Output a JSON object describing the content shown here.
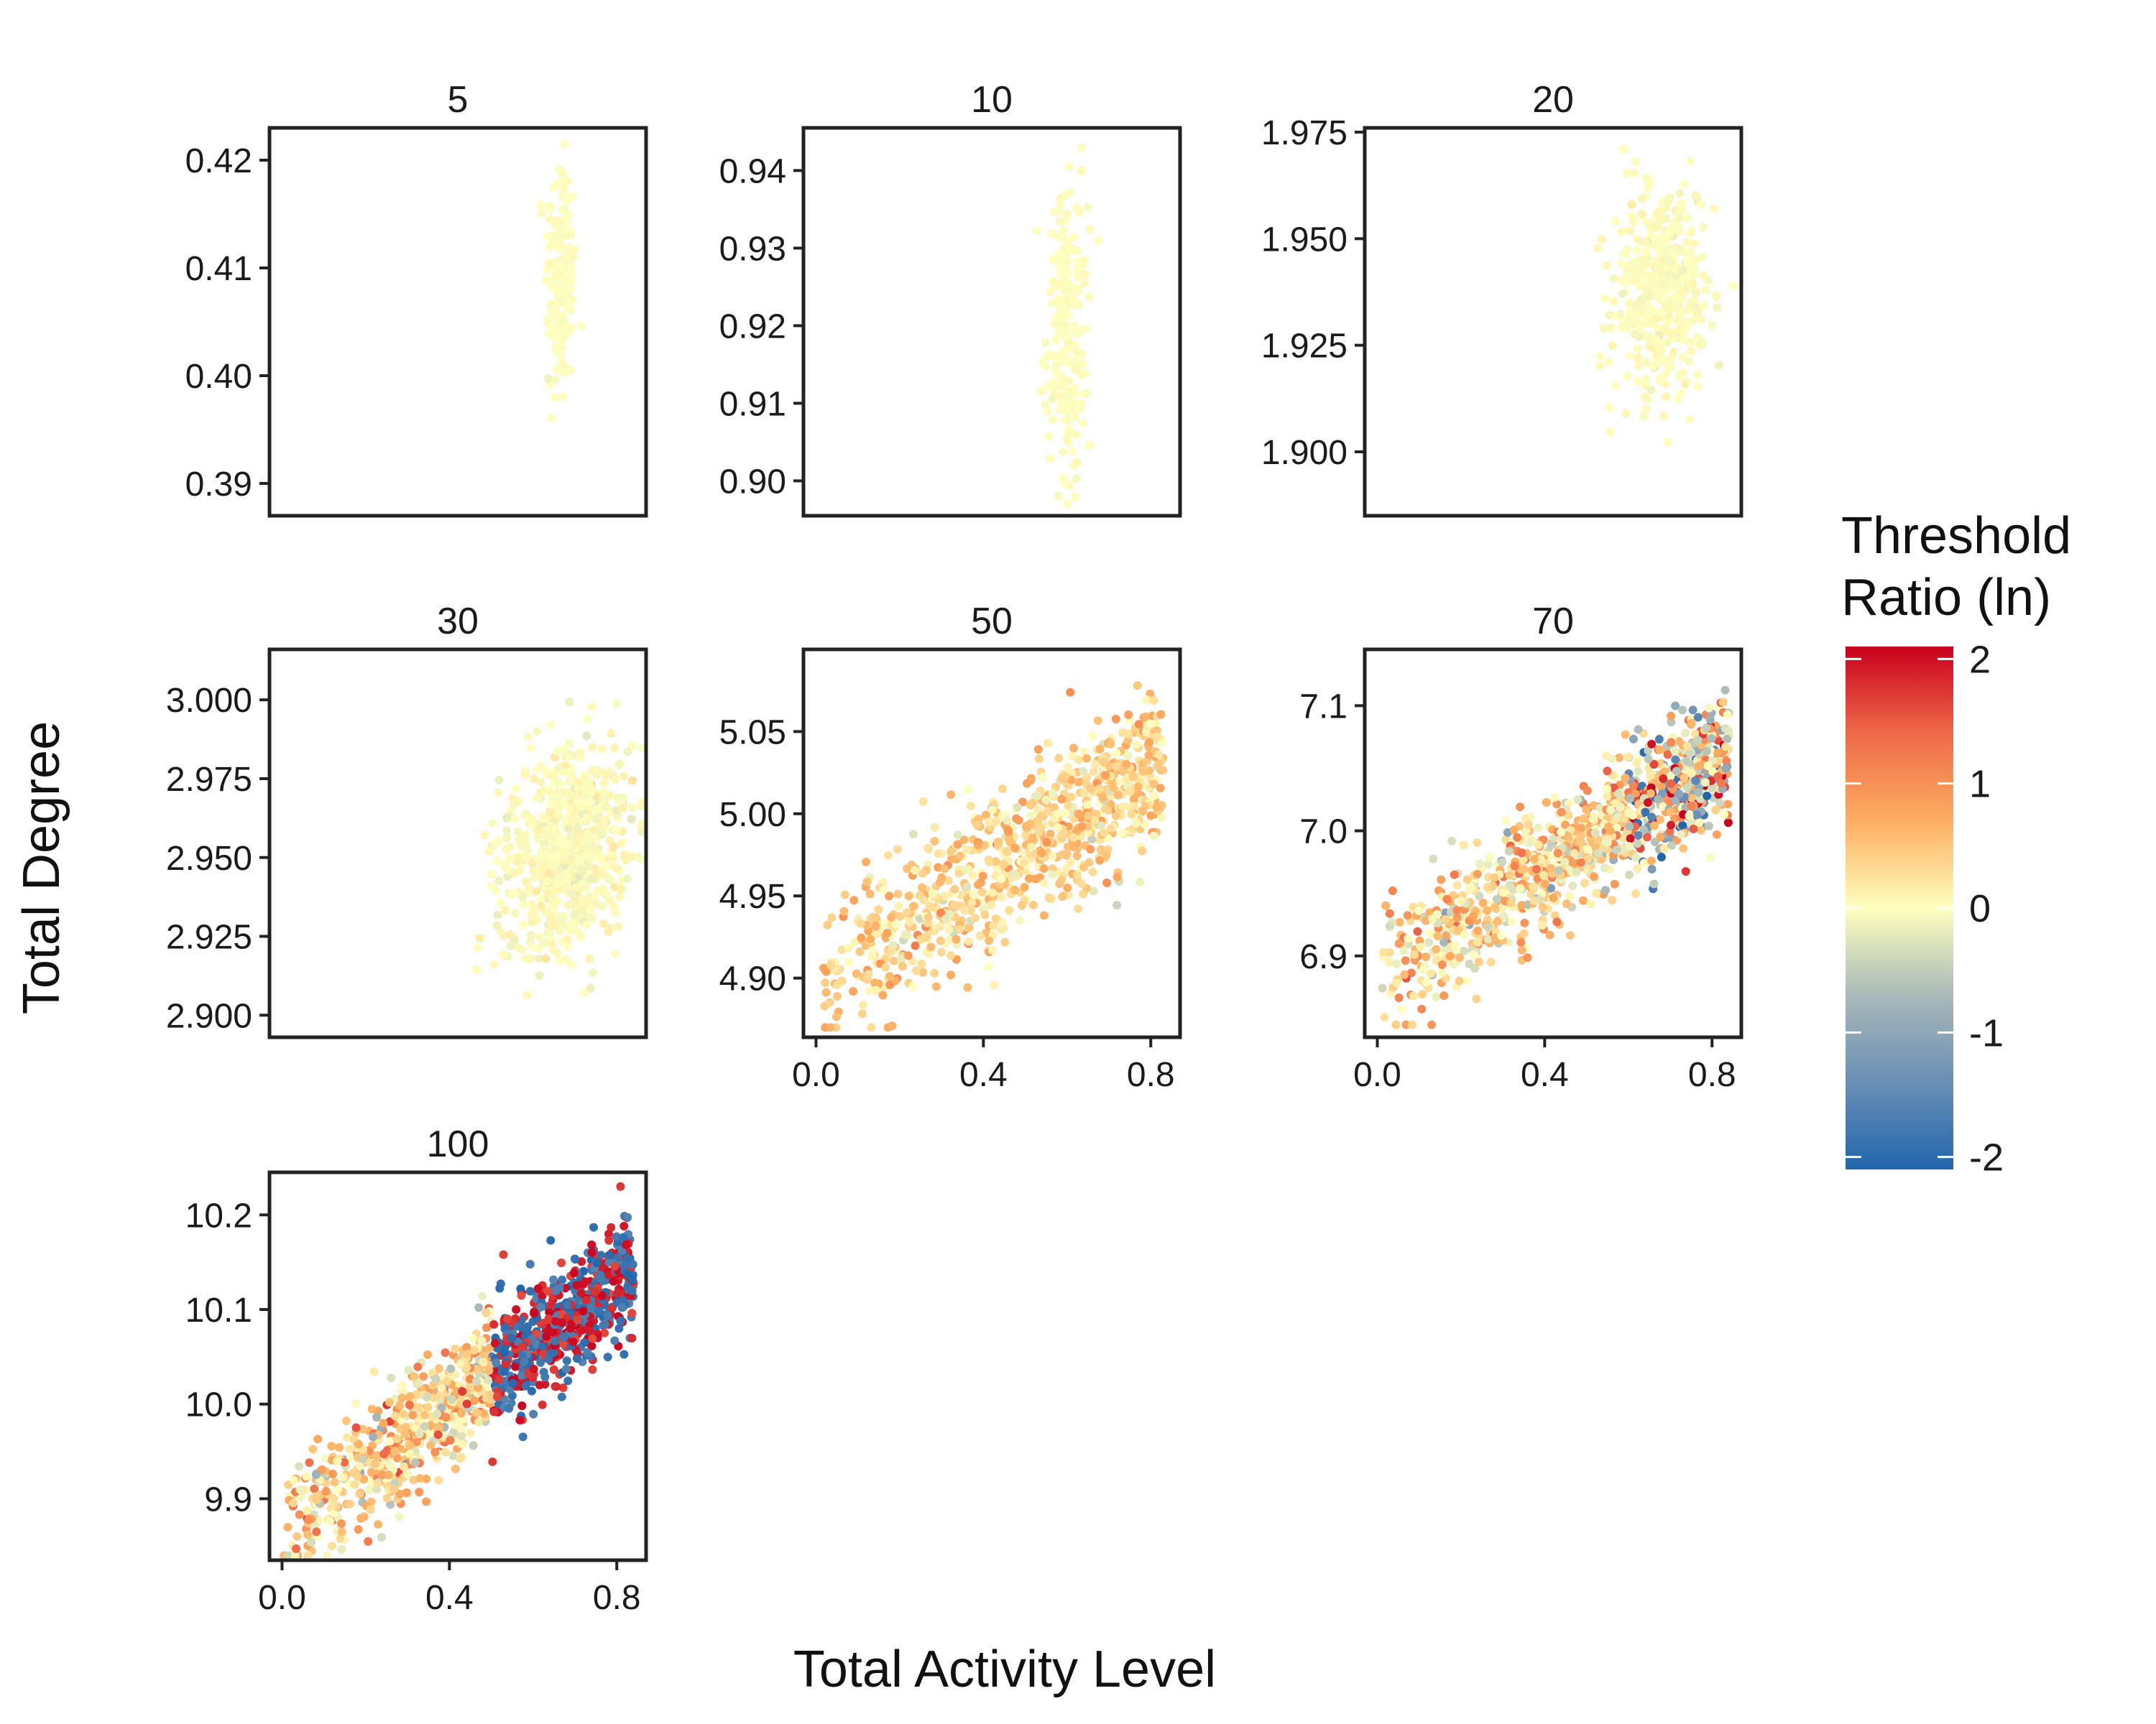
{
  "chart_data": {
    "type": "scatter",
    "xlabel": "Total Activity Level",
    "ylabel": "Total Degree",
    "x_range": [
      -0.03,
      0.87
    ],
    "x_ticks": [
      "0.0",
      "0.4",
      "0.8"
    ],
    "x_tick_values": [
      0.0,
      0.4,
      0.8
    ],
    "grid": false,
    "legend": {
      "title_lines": [
        "Threshold",
        "Ratio (ln)"
      ],
      "placement": "right",
      "range": [
        -2.1,
        2.1
      ],
      "ticks": [
        "2",
        "1",
        "0",
        "-1",
        "-2"
      ],
      "tick_values": [
        2,
        1,
        0,
        -1,
        -2
      ],
      "colors": [
        "#2166ac",
        "#6a8fb5",
        "#a9b9b8",
        "#ffffbf",
        "#fdae61",
        "#ef6a4a",
        "#c8001e"
      ]
    },
    "panels": [
      {
        "strip": "5",
        "ylim": [
          0.387,
          0.423
        ],
        "y_ticks": [
          "0.42",
          "0.41",
          "0.40",
          "0.39"
        ],
        "y_tick_values": [
          0.42,
          0.41,
          0.4,
          0.39
        ],
        "show_x_axis": false,
        "cloud": {
          "n": 160,
          "x_center": 0.665,
          "x_sd": 0.018,
          "x_min": 0.59,
          "x_max": 0.74,
          "y_center": 0.409,
          "y_sd": 0.006,
          "y_min": 0.388,
          "y_max": 0.4215,
          "slope": 0,
          "color_sd": 0.03
        }
      },
      {
        "strip": "10",
        "ylim": [
          0.8955,
          0.9455
        ],
        "y_ticks": [
          "0.94",
          "0.93",
          "0.92",
          "0.91",
          "0.90"
        ],
        "y_tick_values": [
          0.94,
          0.93,
          0.92,
          0.91,
          0.9
        ],
        "show_x_axis": false,
        "cloud": {
          "n": 220,
          "x_center": 0.6,
          "x_sd": 0.025,
          "x_min": 0.47,
          "x_max": 0.69,
          "y_center": 0.919,
          "y_sd": 0.009,
          "y_min": 0.897,
          "y_max": 0.943,
          "slope": 0,
          "color_sd": 0.03
        }
      },
      {
        "strip": "20",
        "ylim": [
          1.885,
          1.976
        ],
        "y_ticks": [
          "1.975",
          "1.950",
          "1.925",
          "1.900"
        ],
        "y_tick_values": [
          1.975,
          1.95,
          1.925,
          1.9
        ],
        "show_x_axis": false,
        "cloud": {
          "n": 420,
          "x_center": 0.68,
          "x_sd": 0.06,
          "x_min": 0.35,
          "x_max": 0.85,
          "y_center": 1.938,
          "y_sd": 0.013,
          "y_min": 1.888,
          "y_max": 1.971,
          "slope": 0.02,
          "color_sd": 0.05
        }
      },
      {
        "strip": "30",
        "ylim": [
          2.893,
          3.016
        ],
        "y_ticks": [
          "3.000",
          "2.975",
          "2.950",
          "2.925",
          "2.900"
        ],
        "y_tick_values": [
          3.0,
          2.975,
          2.95,
          2.925,
          2.9
        ],
        "show_x_axis": false,
        "cloud": {
          "n": 650,
          "x_center": 0.68,
          "x_sd": 0.08,
          "x_min": 0.3,
          "x_max": 0.86,
          "y_center": 2.953,
          "y_sd": 0.016,
          "y_min": 2.897,
          "y_max": 3.011,
          "slope": 0.05,
          "color_sd": 0.08
        }
      },
      {
        "strip": "50",
        "ylim": [
          4.864,
          5.1
        ],
        "y_ticks": [
          "5.05",
          "5.00",
          "4.95",
          "4.90"
        ],
        "y_tick_values": [
          5.05,
          5.0,
          4.95,
          4.9
        ],
        "show_x_axis": true,
        "cloud": {
          "n": 900,
          "x_center": 0.55,
          "x_sd": 0.22,
          "x_min": 0.01,
          "x_max": 0.83,
          "y_center": 4.985,
          "y_sd": 0.022,
          "y_min": 4.87,
          "y_max": 5.09,
          "slope": 0.16,
          "color_sd": 0.3
        }
      },
      {
        "strip": "70",
        "ylim": [
          6.835,
          7.145
        ],
        "y_ticks": [
          "7.1",
          "7.0",
          "6.9"
        ],
        "y_tick_values": [
          7.1,
          7.0,
          6.9
        ],
        "show_x_axis": true,
        "cloud": {
          "n": 1100,
          "x_center": 0.45,
          "x_sd": 0.28,
          "x_min": 0.0,
          "x_max": 0.84,
          "y_center": 6.98,
          "y_sd": 0.025,
          "y_min": 6.845,
          "y_max": 7.135,
          "slope": 0.21,
          "color_sd": 0.5,
          "high_x": 0.6,
          "high_sd": 1.1
        }
      },
      {
        "strip": "100",
        "ylim": [
          9.835,
          10.245
        ],
        "y_ticks": [
          "10.2",
          "10.1",
          "10.0",
          "9.9"
        ],
        "y_tick_values": [
          10.2,
          10.1,
          10.0,
          9.9
        ],
        "show_x_axis": true,
        "cloud": {
          "n": 1200,
          "x_center": 0.4,
          "x_sd": 0.3,
          "x_min": 0.0,
          "x_max": 0.84,
          "y_center": 10.0,
          "y_sd": 0.03,
          "y_min": 9.84,
          "y_max": 10.23,
          "slope": 0.33,
          "color_sd": 0.5,
          "high_x": 0.5,
          "high_sd": 1.4,
          "bimodal": true
        }
      }
    ]
  }
}
